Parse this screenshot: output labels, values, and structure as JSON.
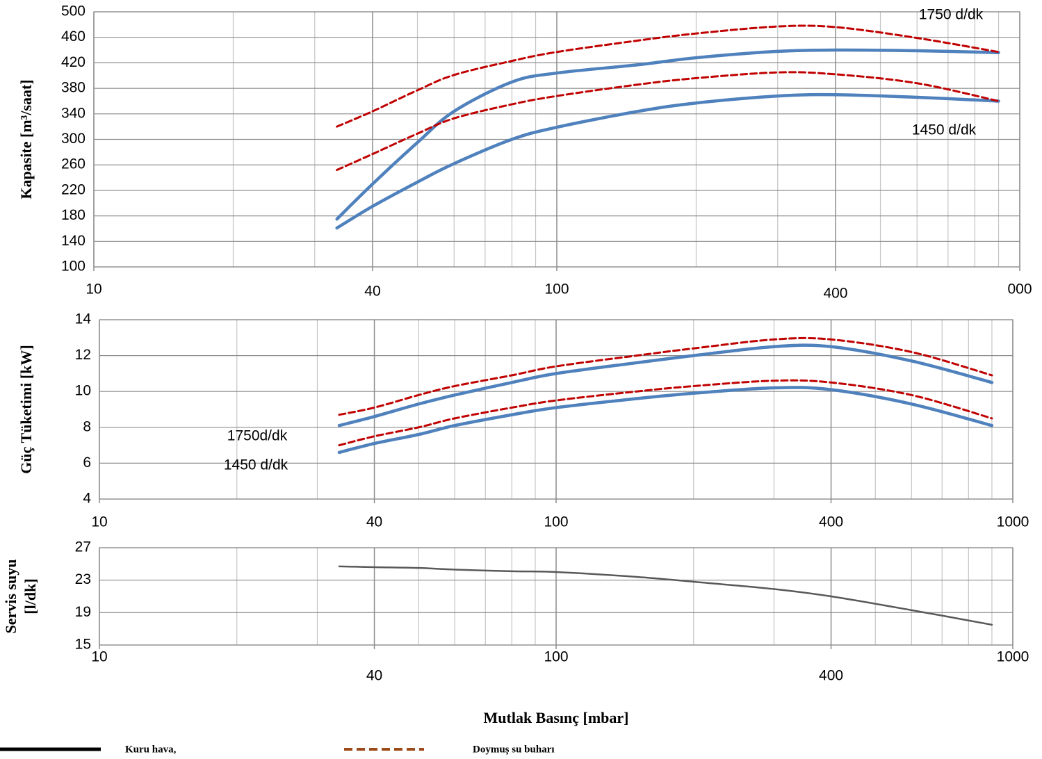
{
  "chart_data": [
    {
      "type": "line",
      "ylabel": "Kapasite [m³/saat]",
      "log_x": true,
      "x": [
        33.5,
        40,
        50,
        60,
        80,
        100,
        150,
        200,
        300,
        400,
        600,
        900
      ],
      "series": [
        {
          "color": "#4f81bd",
          "dash": false,
          "values": [
            175,
            230,
            295,
            344,
            390,
            404,
            417,
            428,
            438,
            440,
            439,
            436
          ]
        },
        {
          "color": "#4f81bd",
          "dash": false,
          "values": [
            161,
            195,
            233,
            262,
            300,
            319,
            344,
            357,
            368,
            370,
            366,
            360
          ]
        },
        {
          "color": "#c00000",
          "dash": true,
          "values": [
            320,
            344,
            377,
            401,
            423,
            437,
            455,
            466,
            477,
            476,
            459,
            437
          ]
        },
        {
          "color": "#c00000",
          "dash": true,
          "values": [
            252,
            277,
            309,
            333,
            355,
            368,
            386,
            396,
            405,
            402,
            388,
            360
          ]
        }
      ],
      "xlim": [
        10,
        1000
      ],
      "xticks": [
        10,
        40,
        100,
        400,
        {
          "value": 1000,
          "label": "000"
        }
      ],
      "xminor_ticks": [
        20,
        30,
        50,
        60,
        70,
        80,
        90,
        200,
        300,
        500,
        600,
        700,
        800,
        900
      ],
      "ylim": [
        100,
        500
      ],
      "yticks": [
        100,
        140,
        180,
        220,
        260,
        300,
        340,
        380,
        420,
        460,
        500
      ],
      "grid": true,
      "annotations": [
        "1750 d/dk",
        "1450 d/dk"
      ]
    },
    {
      "type": "line",
      "ylabel": "Güç Tüketimi [kW]",
      "log_x": true,
      "x": [
        33.5,
        40,
        50,
        60,
        80,
        100,
        150,
        200,
        300,
        400,
        600,
        900
      ],
      "series": [
        {
          "color": "#4f81bd",
          "dash": false,
          "values": [
            8.1,
            8.6,
            9.3,
            9.8,
            10.5,
            11.0,
            11.6,
            12.0,
            12.5,
            12.5,
            11.7,
            10.5
          ]
        },
        {
          "color": "#c00000",
          "dash": true,
          "values": [
            8.7,
            9.1,
            9.8,
            10.3,
            10.9,
            11.4,
            12.0,
            12.4,
            12.9,
            12.9,
            12.2,
            10.9
          ]
        },
        {
          "color": "#4f81bd",
          "dash": false,
          "values": [
            6.6,
            7.1,
            7.6,
            8.1,
            8.7,
            9.1,
            9.6,
            9.9,
            10.2,
            10.1,
            9.3,
            8.1
          ]
        },
        {
          "color": "#c00000",
          "dash": true,
          "values": [
            7.0,
            7.5,
            8.0,
            8.5,
            9.1,
            9.5,
            10.0,
            10.3,
            10.6,
            10.5,
            9.8,
            8.5
          ]
        }
      ],
      "xlim": [
        10,
        1000
      ],
      "xticks": [
        10,
        40,
        100,
        400,
        1000
      ],
      "xminor_ticks": [
        20,
        30,
        50,
        60,
        70,
        80,
        90,
        200,
        300,
        500,
        600,
        700,
        800,
        900
      ],
      "ylim": [
        4,
        14
      ],
      "yticks": [
        4,
        6,
        8,
        10,
        12,
        14
      ],
      "grid": true,
      "annotations": [
        "1750d/dk",
        "1450 d/dk"
      ]
    },
    {
      "type": "line",
      "ylabel": [
        "Servis suyu",
        "[l/dk]"
      ],
      "xlabel": "Mutlak Basınç [mbar]",
      "log_x": true,
      "x": [
        33.5,
        40,
        50,
        60,
        80,
        100,
        150,
        200,
        300,
        400,
        600,
        900
      ],
      "series": [
        {
          "color": "#595959",
          "dash": false,
          "values": [
            24.7,
            24.6,
            24.5,
            24.3,
            24.1,
            24.0,
            23.4,
            22.8,
            21.9,
            21.0,
            19.3,
            17.5
          ]
        }
      ],
      "xlim": [
        10,
        1000
      ],
      "xticks": [
        10,
        40,
        100,
        400,
        1000
      ],
      "xminor_ticks": [
        20,
        30,
        50,
        60,
        70,
        80,
        90,
        200,
        300,
        500,
        600,
        700,
        800,
        900
      ],
      "ylim": [
        15,
        27
      ],
      "yticks": [
        15,
        19,
        23,
        27
      ],
      "grid": true
    }
  ],
  "legend": [
    {
      "label": "Kuru hava,",
      "color": "#000000",
      "dash": false
    },
    {
      "label": "Doymuş su buharı",
      "color": "#9c4a1a",
      "dash": true
    }
  ]
}
